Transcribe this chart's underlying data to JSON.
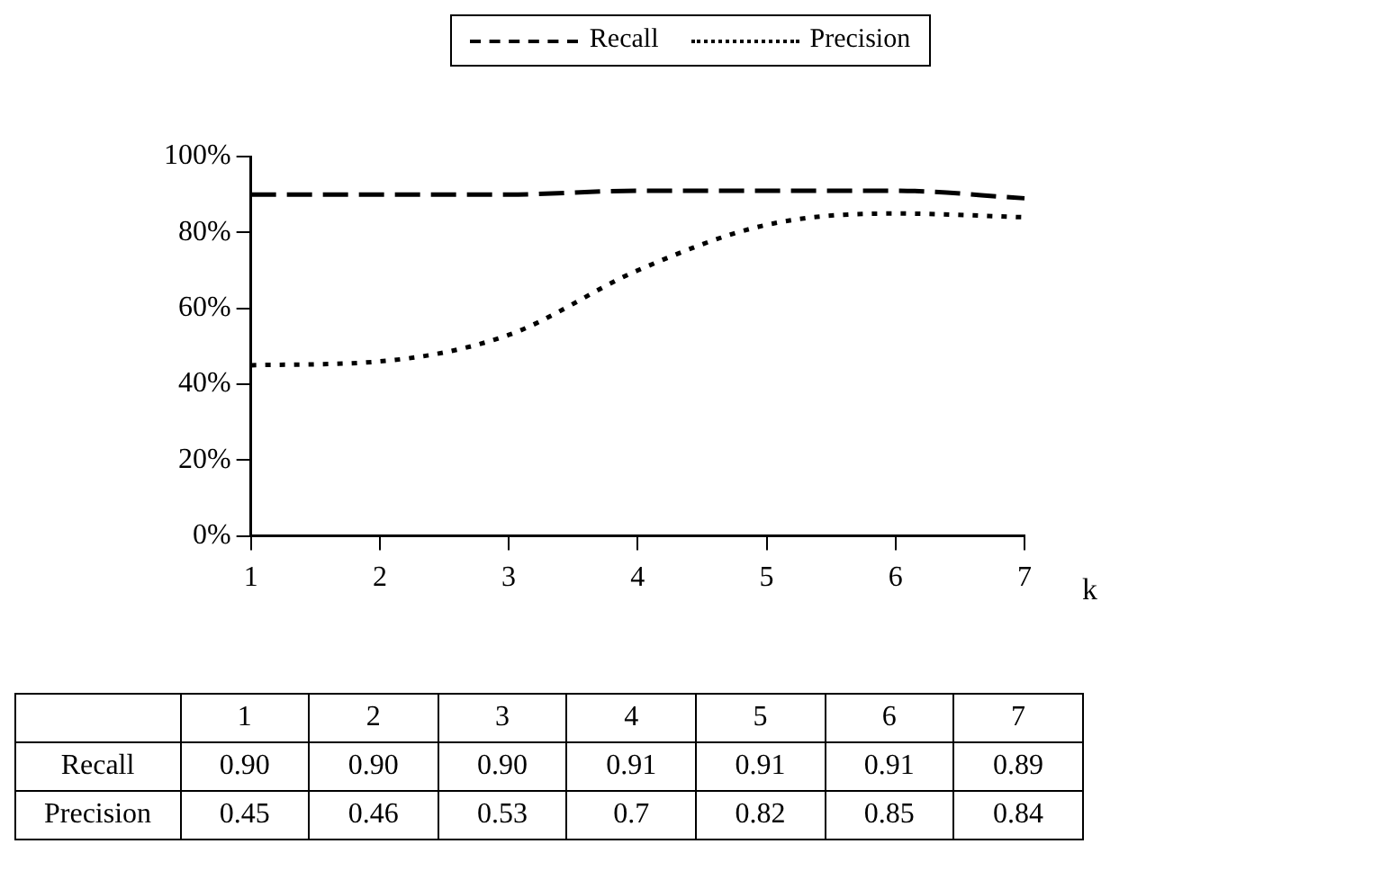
{
  "chart_data": {
    "type": "line",
    "xlabel": "k",
    "categories": [
      "1",
      "2",
      "3",
      "4",
      "5",
      "6",
      "7"
    ],
    "series": [
      {
        "name": "Recall",
        "color": "#000000",
        "line_style": "dashed",
        "values": [
          0.9,
          0.9,
          0.9,
          0.91,
          0.91,
          0.91,
          0.89
        ],
        "value_labels": [
          "0.90",
          "0.90",
          "0.90",
          "0.91",
          "0.91",
          "0.91",
          "0.89"
        ]
      },
      {
        "name": "Precision",
        "color": "#000000",
        "line_style": "dotted",
        "values": [
          0.45,
          0.46,
          0.53,
          0.7,
          0.82,
          0.85,
          0.84
        ],
        "value_labels": [
          "0.45",
          "0.46",
          "0.53",
          "0.7",
          "0.82",
          "0.85",
          "0.84"
        ]
      }
    ],
    "ylim": [
      0,
      1
    ],
    "yticks": [
      {
        "value": 0,
        "label": "0%"
      },
      {
        "value": 0.2,
        "label": "20%"
      },
      {
        "value": 0.4,
        "label": "40%"
      },
      {
        "value": 0.6,
        "label": "60%"
      },
      {
        "value": 0.8,
        "label": "80%"
      },
      {
        "value": 1,
        "label": "100%"
      }
    ],
    "grid": false,
    "legend": "top",
    "marker": "none"
  }
}
